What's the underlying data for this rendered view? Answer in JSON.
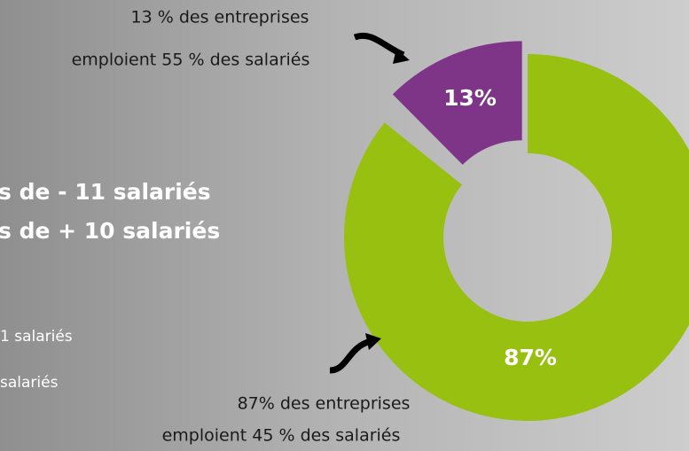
{
  "chart_data": {
    "type": "pie",
    "donut": true,
    "values": [
      87,
      13
    ],
    "value_labels": [
      "87%",
      "13%"
    ],
    "colors": [
      "#97c010",
      "#7e3588"
    ],
    "exploded": [
      false,
      true
    ],
    "annotations": [
      [
        "13 % des entreprises",
        "emploient 55 % des salariés"
      ],
      [
        "87% des entreprises",
        "emploient 45 % des salariés"
      ]
    ],
    "side_texts": [
      "s de  - 11 salariés",
      "s de + 10 salariés",
      "1 salariés",
      "salariés"
    ]
  }
}
